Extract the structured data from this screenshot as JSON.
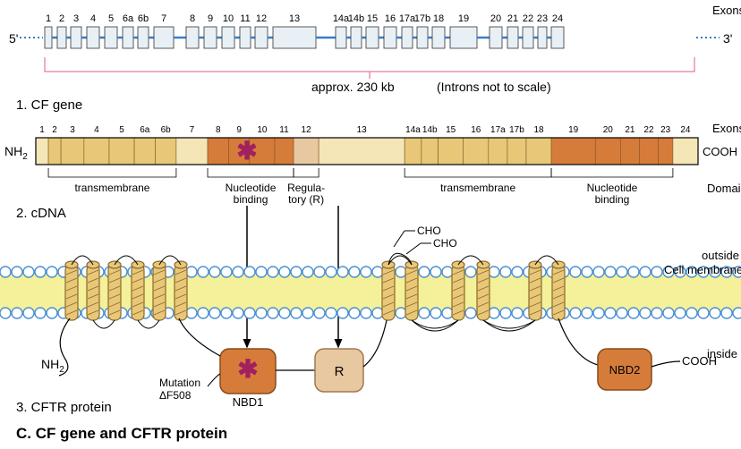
{
  "title": "C. CF gene and CFTR protein",
  "section1": {
    "label": "1. CF gene",
    "size_label": "approx. 230 kb",
    "intron_note": "(Introns not to scale)",
    "five_prime": "5'",
    "three_prime": "3'",
    "exons_label": "Exons",
    "exon_labels": [
      "1",
      "2",
      "3",
      "4",
      "5",
      "6a",
      "6b",
      "7",
      "8",
      "9",
      "10",
      "11",
      "12",
      "13",
      "14a",
      "14b",
      "15",
      "16",
      "17a",
      "17b",
      "18",
      "19",
      "20",
      "21",
      "22",
      "23",
      "24"
    ],
    "exon_color": "#e8f0f5",
    "intron_color": "#3a7cc8",
    "stroke": "#000000"
  },
  "section2": {
    "label": "2. cDNA",
    "nh2": "NH",
    "nh2_sub": "2",
    "cooh": "COOH",
    "exons_label": "Exons",
    "domains_label": "Domains",
    "exon_labels": [
      "1",
      "2",
      "3",
      "4",
      "5",
      "6a",
      "6b",
      "7",
      "8",
      "9",
      "10",
      "11",
      "12",
      "13",
      "14a",
      "14b",
      "15",
      "16",
      "17a",
      "17b",
      "18",
      "19",
      "20",
      "21",
      "22",
      "23",
      "24"
    ],
    "domains": {
      "tm1": "transmembrane",
      "nbd1": "Nucleotide binding",
      "r": "Regula- tory (R)",
      "tm2": "transmembrane",
      "nbd2": "Nucleotide binding"
    },
    "colors": {
      "light": "#f5e6b8",
      "med": "#e8c778",
      "dark": "#d89550",
      "nbd": "#d67c3a",
      "r_region": "#e8c8a0"
    }
  },
  "section3": {
    "label": "3. CFTR protein",
    "nh2": "NH",
    "nh2_sub": "2",
    "cooh": "COOH",
    "cho": "CHO",
    "outside": "outside",
    "inside": "inside",
    "cell_membrane": "Cell membrane",
    "nbd1": "NBD1",
    "nbd2": "NBD2",
    "r": "R",
    "mutation": "Mutation ΔF508",
    "colors": {
      "membrane_fill": "#f5f09a",
      "lipid_head": "#ffffff",
      "lipid_stroke": "#4a90d0",
      "helix_fill": "#e8c778",
      "helix_stroke": "#8a6a2a",
      "nbd_fill": "#d67c3a",
      "nbd_stroke": "#8a4a1a",
      "r_fill": "#e8c8a0",
      "r_stroke": "#a07850",
      "asterisk": "#a02060"
    }
  }
}
